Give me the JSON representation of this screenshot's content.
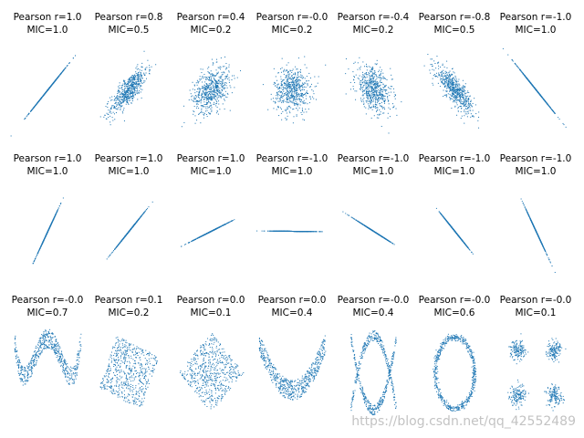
{
  "figure": {
    "watermark": "https://blog.csdn.net/qq_42552489",
    "point_color": "#1f77b4"
  },
  "chart_data": [
    {
      "type": "scatter",
      "row": 0,
      "col": 0,
      "title_line1": "Pearson r=1.0",
      "title_line2": "MIC=1.0",
      "pattern": "gaussian",
      "rho": 1.0,
      "x_std": 1.0,
      "y_std": 1.0,
      "axes": "off",
      "xlim": [
        -4,
        4
      ],
      "ylim": [
        -4,
        4
      ]
    },
    {
      "type": "scatter",
      "row": 0,
      "col": 1,
      "title_line1": "Pearson r=0.8",
      "title_line2": "MIC=0.5",
      "pattern": "gaussian",
      "rho": 0.8,
      "x_std": 1.0,
      "y_std": 1.0,
      "axes": "off",
      "xlim": [
        -4,
        4
      ],
      "ylim": [
        -4,
        4
      ]
    },
    {
      "type": "scatter",
      "row": 0,
      "col": 2,
      "title_line1": "Pearson r=0.4",
      "title_line2": "MIC=0.2",
      "pattern": "gaussian",
      "rho": 0.4,
      "x_std": 1.0,
      "y_std": 1.0,
      "axes": "off",
      "xlim": [
        -4,
        4
      ],
      "ylim": [
        -4,
        4
      ]
    },
    {
      "type": "scatter",
      "row": 0,
      "col": 3,
      "title_line1": "Pearson r=-0.0",
      "title_line2": "MIC=0.2",
      "pattern": "gaussian",
      "rho": 0.0,
      "x_std": 1.0,
      "y_std": 1.0,
      "axes": "off",
      "xlim": [
        -4,
        4
      ],
      "ylim": [
        -4,
        4
      ]
    },
    {
      "type": "scatter",
      "row": 0,
      "col": 4,
      "title_line1": "Pearson r=-0.4",
      "title_line2": "MIC=0.2",
      "pattern": "gaussian",
      "rho": -0.4,
      "x_std": 1.0,
      "y_std": 1.0,
      "axes": "off",
      "xlim": [
        -4,
        4
      ],
      "ylim": [
        -4,
        4
      ]
    },
    {
      "type": "scatter",
      "row": 0,
      "col": 5,
      "title_line1": "Pearson r=-0.8",
      "title_line2": "MIC=0.5",
      "pattern": "gaussian",
      "rho": -0.8,
      "x_std": 1.0,
      "y_std": 1.0,
      "axes": "off",
      "xlim": [
        -4,
        4
      ],
      "ylim": [
        -4,
        4
      ]
    },
    {
      "type": "scatter",
      "row": 0,
      "col": 6,
      "title_line1": "Pearson r=-1.0",
      "title_line2": "MIC=1.0",
      "pattern": "gaussian",
      "rho": -1.0,
      "x_std": 1.0,
      "y_std": 1.0,
      "axes": "off",
      "xlim": [
        -4,
        4
      ],
      "ylim": [
        -4,
        4
      ]
    },
    {
      "type": "scatter",
      "row": 1,
      "col": 0,
      "title_line1": "Pearson r=1.0",
      "title_line2": "MIC=1.0",
      "pattern": "rotated_line",
      "angle_deg": 60,
      "axes": "off",
      "xlim": [
        -4,
        4
      ],
      "ylim": [
        -4,
        4
      ]
    },
    {
      "type": "scatter",
      "row": 1,
      "col": 1,
      "title_line1": "Pearson r=1.0",
      "title_line2": "MIC=1.0",
      "pattern": "rotated_line",
      "angle_deg": 45,
      "axes": "off",
      "xlim": [
        -4,
        4
      ],
      "ylim": [
        -4,
        4
      ]
    },
    {
      "type": "scatter",
      "row": 1,
      "col": 2,
      "title_line1": "Pearson r=1.0",
      "title_line2": "MIC=1.0",
      "pattern": "rotated_line",
      "angle_deg": 22,
      "axes": "off",
      "xlim": [
        -4,
        4
      ],
      "ylim": [
        -4,
        4
      ]
    },
    {
      "type": "scatter",
      "row": 1,
      "col": 3,
      "title_line1": "Pearson r=-1.0",
      "title_line2": "MIC=1.0",
      "pattern": "rotated_line",
      "angle_deg": -0.5,
      "axes": "off",
      "xlim": [
        -4,
        4
      ],
      "ylim": [
        -4,
        4
      ]
    },
    {
      "type": "scatter",
      "row": 1,
      "col": 4,
      "title_line1": "Pearson r=-1.0",
      "title_line2": "MIC=1.0",
      "pattern": "rotated_line",
      "angle_deg": -27,
      "axes": "off",
      "xlim": [
        -4,
        4
      ],
      "ylim": [
        -4,
        4
      ]
    },
    {
      "type": "scatter",
      "row": 1,
      "col": 5,
      "title_line1": "Pearson r=-1.0",
      "title_line2": "MIC=1.0",
      "pattern": "rotated_line",
      "angle_deg": -45,
      "axes": "off",
      "xlim": [
        -4,
        4
      ],
      "ylim": [
        -4,
        4
      ]
    },
    {
      "type": "scatter",
      "row": 1,
      "col": 6,
      "title_line1": "Pearson r=-1.0",
      "title_line2": "MIC=1.0",
      "pattern": "rotated_line",
      "angle_deg": -60,
      "axes": "off",
      "xlim": [
        -4,
        4
      ],
      "ylim": [
        -4,
        4
      ]
    },
    {
      "type": "scatter",
      "row": 2,
      "col": 0,
      "title_line1": "Pearson r=-0.0",
      "title_line2": "MIC=0.7",
      "pattern": "w_shape",
      "axes": "off",
      "xlim": [
        -1.1,
        1.1
      ],
      "ylim": [
        -1.1,
        1.3
      ]
    },
    {
      "type": "scatter",
      "row": 2,
      "col": 1,
      "title_line1": "Pearson r=0.1",
      "title_line2": "MIC=0.2",
      "pattern": "rotated_square",
      "angle_deg": -22,
      "axes": "off",
      "xlim": [
        -1.6,
        1.6
      ],
      "ylim": [
        -1.6,
        1.6
      ]
    },
    {
      "type": "scatter",
      "row": 2,
      "col": 2,
      "title_line1": "Pearson r=0.0",
      "title_line2": "MIC=0.1",
      "pattern": "rotated_square",
      "angle_deg": -45,
      "axes": "off",
      "xlim": [
        -1.6,
        1.6
      ],
      "ylim": [
        -1.6,
        1.6
      ]
    },
    {
      "type": "scatter",
      "row": 2,
      "col": 3,
      "title_line1": "Pearson r=0.0",
      "title_line2": "MIC=0.4",
      "pattern": "parabola",
      "axes": "off",
      "xlim": [
        -1.1,
        1.1
      ],
      "ylim": [
        -0.6,
        1.9
      ]
    },
    {
      "type": "scatter",
      "row": 2,
      "col": 4,
      "title_line1": "Pearson r=-0.0",
      "title_line2": "MIC=0.4",
      "pattern": "x_shape",
      "axes": "off",
      "xlim": [
        -1.6,
        1.6
      ],
      "ylim": [
        -1.6,
        1.6
      ]
    },
    {
      "type": "scatter",
      "row": 2,
      "col": 5,
      "title_line1": "Pearson r=-0.0",
      "title_line2": "MIC=0.6",
      "pattern": "circle",
      "axes": "off",
      "xlim": [
        -1.6,
        1.6
      ],
      "ylim": [
        -1.6,
        1.6
      ]
    },
    {
      "type": "scatter",
      "row": 2,
      "col": 6,
      "title_line1": "Pearson r=-0.0",
      "title_line2": "MIC=0.1",
      "pattern": "four_clusters",
      "cluster_centers": [
        [
          -3,
          -3
        ],
        [
          -3,
          3
        ],
        [
          3,
          -3
        ],
        [
          3,
          3
        ]
      ],
      "axes": "off",
      "xlim": [
        -6,
        6
      ],
      "ylim": [
        -6,
        6
      ]
    }
  ]
}
